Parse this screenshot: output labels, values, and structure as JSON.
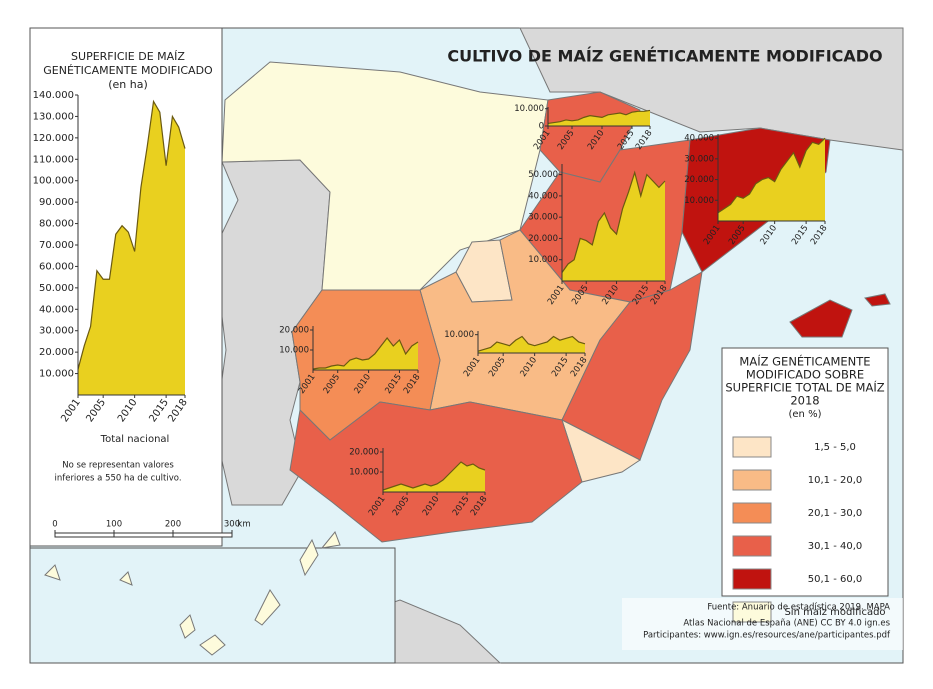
{
  "title": "CULTIVO DE MAÍZ GENÉTICAMENTE MODIFICADO",
  "national_chart": {
    "type": "area",
    "title_lines": [
      "SUPERFICIE DE MAÍZ",
      "GENÉTICAMENTE MODIFICADO",
      "(en ha)"
    ],
    "x": [
      2001,
      2002,
      2003,
      2004,
      2005,
      2006,
      2007,
      2008,
      2009,
      2010,
      2011,
      2012,
      2013,
      2014,
      2015,
      2016,
      2017,
      2018
    ],
    "values": [
      12000,
      23000,
      32000,
      58000,
      54000,
      54000,
      75000,
      79000,
      76000,
      67000,
      97000,
      116000,
      137000,
      132000,
      107000,
      130000,
      125000,
      115000
    ],
    "color": "#e9d01f",
    "ylim": [
      0,
      140000
    ],
    "yticks": [
      {
        "value": 10000,
        "label": "10.000"
      },
      {
        "value": 20000,
        "label": "20.000"
      },
      {
        "value": 30000,
        "label": "30.000"
      },
      {
        "value": 40000,
        "label": "40.000"
      },
      {
        "value": 50000,
        "label": "50.000"
      },
      {
        "value": 60000,
        "label": "60.000"
      },
      {
        "value": 70000,
        "label": "70.000"
      },
      {
        "value": 80000,
        "label": "80.000"
      },
      {
        "value": 90000,
        "label": "90.000"
      },
      {
        "value": 100000,
        "label": "100.000"
      },
      {
        "value": 110000,
        "label": "110.000"
      },
      {
        "value": 120000,
        "label": "120.000"
      },
      {
        "value": 130000,
        "label": "130.000"
      },
      {
        "value": 140000,
        "label": "140.000"
      }
    ],
    "xticks": [
      2001,
      2005,
      2010,
      2015,
      2018
    ],
    "caption": "Total nacional"
  },
  "note_lines": [
    "No se representan valores",
    "inferiores a 550 ha de cultivo."
  ],
  "regional_charts": [
    {
      "type": "area",
      "x": [
        2001,
        2002,
        2003,
        2004,
        2005,
        2006,
        2007,
        2008,
        2009,
        2010,
        2011,
        2012,
        2013,
        2014,
        2015,
        2016,
        2017,
        2018
      ],
      "values": [
        1500,
        2000,
        2500,
        3500,
        3000,
        3500,
        5000,
        6000,
        5500,
        5000,
        6500,
        7000,
        7500,
        6500,
        8000,
        8500,
        8500,
        9000
      ],
      "ylim": [
        0,
        11000
      ],
      "yticks": [
        0,
        {
          "value": 10000,
          "label": "10.000"
        }
      ],
      "xticks": [
        2001,
        2005,
        2010,
        2015,
        2018
      ]
    },
    {
      "type": "area",
      "x": [
        2001,
        2002,
        2003,
        2004,
        2005,
        2006,
        2007,
        2008,
        2009,
        2010,
        2011,
        2012,
        2013,
        2014,
        2015,
        2016,
        2017,
        2018
      ],
      "values": [
        4000,
        6000,
        8000,
        12000,
        11000,
        13000,
        18000,
        20000,
        21000,
        19000,
        25000,
        29000,
        33000,
        26000,
        34000,
        38000,
        37000,
        40000
      ],
      "ylim": [
        0,
        42000
      ],
      "yticks": [
        {
          "value": 10000,
          "label": "10.000"
        },
        {
          "value": 20000,
          "label": "20.000"
        },
        {
          "value": 30000,
          "label": "30.000"
        },
        {
          "value": 40000,
          "label": "40.000"
        }
      ],
      "xticks": [
        2001,
        2005,
        2010,
        2015,
        2018
      ]
    },
    {
      "type": "area",
      "x": [
        2001,
        2002,
        2003,
        2004,
        2005,
        2006,
        2007,
        2008,
        2009,
        2010,
        2011,
        2012,
        2013,
        2014,
        2015,
        2016,
        2017,
        2018
      ],
      "values": [
        4000,
        8000,
        10000,
        20000,
        19000,
        17000,
        28000,
        32000,
        25000,
        22000,
        34000,
        42000,
        51000,
        40000,
        50000,
        47000,
        44000,
        47000
      ],
      "ylim": [
        0,
        55000
      ],
      "yticks": [
        {
          "value": 10000,
          "label": "10.000"
        },
        {
          "value": 20000,
          "label": "20.000"
        },
        {
          "value": 30000,
          "label": "30.000"
        },
        {
          "value": 40000,
          "label": "40.000"
        },
        {
          "value": 50000,
          "label": "50.000"
        }
      ],
      "xticks": [
        2001,
        2005,
        2010,
        2015,
        2018
      ]
    },
    {
      "type": "area",
      "x": [
        2001,
        2002,
        2003,
        2004,
        2005,
        2006,
        2007,
        2008,
        2009,
        2010,
        2011,
        2012,
        2013,
        2014,
        2015,
        2016,
        2017,
        2018
      ],
      "values": [
        500,
        1000,
        1000,
        2000,
        2500,
        2000,
        5000,
        6000,
        5000,
        5500,
        8000,
        12000,
        16000,
        12000,
        15000,
        8000,
        12000,
        14000
      ],
      "ylim": [
        0,
        22000
      ],
      "yticks": [
        {
          "value": 10000,
          "label": "10.000"
        },
        {
          "value": 20000,
          "label": "20.000"
        }
      ],
      "xticks": [
        2001,
        2005,
        2010,
        2015,
        2018
      ]
    },
    {
      "type": "area",
      "x": [
        2001,
        2002,
        2003,
        2004,
        2005,
        2006,
        2007,
        2008,
        2009,
        2010,
        2011,
        2012,
        2013,
        2014,
        2015,
        2016,
        2017,
        2018
      ],
      "values": [
        1000,
        2000,
        3000,
        6000,
        5000,
        4000,
        7000,
        9000,
        5000,
        4000,
        5000,
        6000,
        9000,
        7000,
        8000,
        9000,
        6000,
        5000
      ],
      "ylim": [
        0,
        12000
      ],
      "yticks": [
        {
          "value": 10000,
          "label": "10.000"
        }
      ],
      "xticks": [
        2001,
        2005,
        2010,
        2015,
        2018
      ]
    },
    {
      "type": "area",
      "x": [
        2001,
        2002,
        2003,
        2004,
        2005,
        2006,
        2007,
        2008,
        2009,
        2010,
        2011,
        2012,
        2013,
        2014,
        2015,
        2016,
        2017,
        2018
      ],
      "values": [
        1000,
        2000,
        3000,
        4000,
        3000,
        2000,
        3000,
        4000,
        3000,
        4000,
        6000,
        9000,
        12000,
        15000,
        13000,
        14000,
        12000,
        11000
      ],
      "ylim": [
        0,
        22000
      ],
      "yticks": [
        {
          "value": 10000,
          "label": "10.000"
        },
        {
          "value": 20000,
          "label": "20.000"
        }
      ],
      "xticks": [
        2001,
        2005,
        2010,
        2015,
        2018
      ]
    }
  ],
  "legend": {
    "title_lines": [
      "MAÍZ GENÉTICAMENTE",
      "MODIFICADO SOBRE",
      "SUPERFICIE TOTAL DE MAÍZ",
      "2018",
      "(en %)"
    ],
    "classes": [
      {
        "label": "1,5 - 5,0",
        "color": "#fde5c6"
      },
      {
        "label": "10,1 - 20,0",
        "color": "#f9bb86"
      },
      {
        "label": "20,1 - 30,0",
        "color": "#f48d56"
      },
      {
        "label": "30,1 - 40,0",
        "color": "#e8604a"
      },
      {
        "label": "50,1 - 60,0",
        "color": "#c0130f"
      },
      {
        "label": "Sin maíz modificado",
        "color": "#fdfbdc"
      }
    ]
  },
  "scale_bar": {
    "ticks": [
      0,
      100,
      200,
      300
    ],
    "unit": "km"
  },
  "footer_lines": [
    "Fuente: Anuario de estadística 2019. MAPA",
    "Atlas Nacional de España (ANE) CC BY 4.0 ign.es",
    "Participantes: www.ign.es/resources/ane/participantes.pdf"
  ]
}
